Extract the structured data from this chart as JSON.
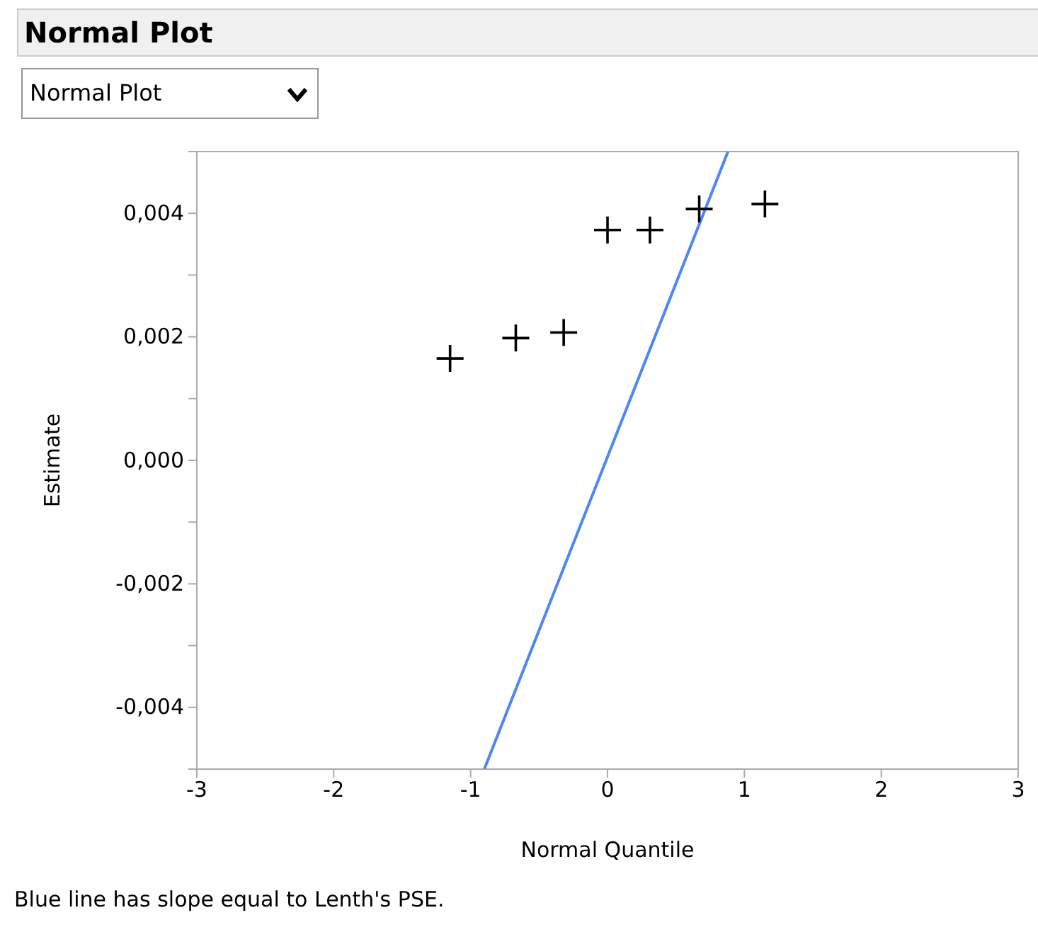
{
  "chart_data": {
    "type": "scatter",
    "title": "Normal Plot",
    "subtitle": "Normal Plot",
    "xlabel": "Normal Quantile",
    "ylabel": "Estimate",
    "xlim": [
      -3,
      3
    ],
    "xticks": [
      -3,
      -2,
      -1,
      0,
      1,
      2,
      3
    ],
    "ylim": [
      -0.005,
      0.005
    ],
    "yticks": [
      {
        "value": -0.005,
        "label": null
      },
      {
        "value": -0.004,
        "label": "-0,004"
      },
      {
        "value": -0.003,
        "label": null
      },
      {
        "value": -0.002,
        "label": "-0,002"
      },
      {
        "value": -0.001,
        "label": null
      },
      {
        "value": 0,
        "label": "0,000"
      },
      {
        "value": 0.001,
        "label": null
      },
      {
        "value": 0.002,
        "label": "0,002"
      },
      {
        "value": 0.003,
        "label": null
      },
      {
        "value": 0.004,
        "label": "0,004"
      },
      {
        "value": 0.005,
        "label": null
      }
    ],
    "grid": false,
    "series": [
      {
        "type": "scatter",
        "marker": "cross",
        "color": "#000000",
        "x": [
          -1.15,
          -0.67,
          -0.32,
          0,
          0.31,
          0.67,
          1.15
        ],
        "values": [
          0.00165,
          0.00198,
          0.00207,
          0.00373,
          0.00373,
          0.00407,
          0.00415
        ]
      },
      {
        "type": "line",
        "marker": "none",
        "line_style": "solid",
        "color": "#4d86f7",
        "x": [
          -0.9,
          0.88
        ],
        "values": [
          -0.005,
          0.005
        ]
      }
    ],
    "annotations": [
      "Blue line has slope equal to Lenth's PSE."
    ]
  }
}
